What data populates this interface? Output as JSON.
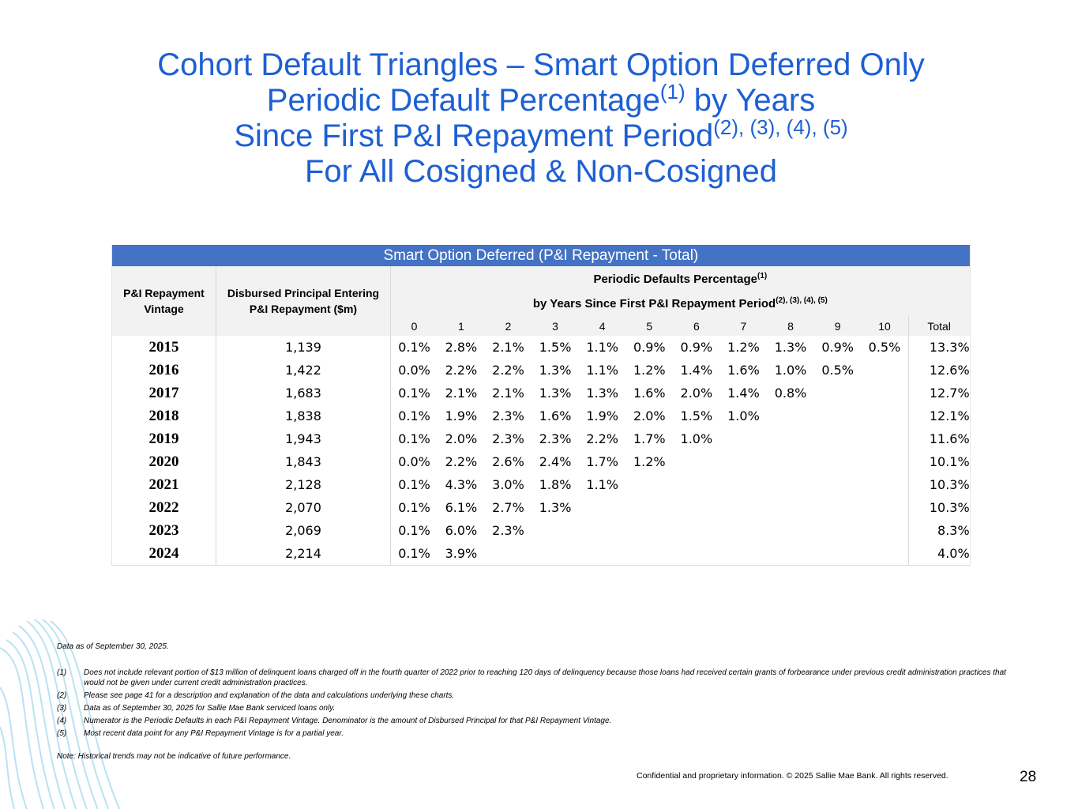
{
  "title": {
    "line1": "Cohort Default Triangles – Smart Option Deferred Only",
    "line2": "Periodic Default Percentage",
    "line2_sup": "(1)",
    "line2_end": "by Years",
    "line3": "Since First P&I Repayment Period",
    "line3_sup": "(2), (3), (4), (5)",
    "line4": "For All Cosigned & Non-Cosigned"
  },
  "table": {
    "caption": "Smart Option Deferred (P&I Repayment - Total)",
    "col_vintage": "P&I Repayment Vintage",
    "col_principal": "Disbursed Principal Entering P&I Repayment ($m)",
    "group_header": "Periodic Defaults Percentage",
    "group_sup": "(1)",
    "group_header2": "by Years Since First P&I Repayment Period",
    "group_sup2": "(2), (3), (4), (5)",
    "periods": [
      "0",
      "1",
      "2",
      "3",
      "4",
      "5",
      "6",
      "7",
      "8",
      "9",
      "10"
    ],
    "total_header": "Total",
    "rows": [
      {
        "vintage": "2015",
        "principal": "1,139",
        "periods": [
          "0.1%",
          "2.8%",
          "2.1%",
          "1.5%",
          "1.1%",
          "0.9%",
          "0.9%",
          "1.2%",
          "1.3%",
          "0.9%",
          "0.5%"
        ],
        "total": "13.3%"
      },
      {
        "vintage": "2016",
        "principal": "1,422",
        "periods": [
          "0.0%",
          "2.2%",
          "2.2%",
          "1.3%",
          "1.1%",
          "1.2%",
          "1.4%",
          "1.6%",
          "1.0%",
          "0.5%"
        ],
        "total": "12.6%"
      },
      {
        "vintage": "2017",
        "principal": "1,683",
        "periods": [
          "0.1%",
          "2.1%",
          "2.1%",
          "1.3%",
          "1.3%",
          "1.6%",
          "2.0%",
          "1.4%",
          "0.8%"
        ],
        "total": "12.7%"
      },
      {
        "vintage": "2018",
        "principal": "1,838",
        "periods": [
          "0.1%",
          "1.9%",
          "2.3%",
          "1.6%",
          "1.9%",
          "2.0%",
          "1.5%",
          "1.0%"
        ],
        "total": "12.1%"
      },
      {
        "vintage": "2019",
        "principal": "1,943",
        "periods": [
          "0.1%",
          "2.0%",
          "2.3%",
          "2.3%",
          "2.2%",
          "1.7%",
          "1.0%"
        ],
        "total": "11.6%"
      },
      {
        "vintage": "2020",
        "principal": "1,843",
        "periods": [
          "0.0%",
          "2.2%",
          "2.6%",
          "2.4%",
          "1.7%",
          "1.2%"
        ],
        "total": "10.1%"
      },
      {
        "vintage": "2021",
        "principal": "2,128",
        "periods": [
          "0.1%",
          "4.3%",
          "3.0%",
          "1.8%",
          "1.1%"
        ],
        "total": "10.3%"
      },
      {
        "vintage": "2022",
        "principal": "2,070",
        "periods": [
          "0.1%",
          "6.1%",
          "2.7%",
          "1.3%"
        ],
        "total": "10.3%"
      },
      {
        "vintage": "2023",
        "principal": "2,069",
        "periods": [
          "0.1%",
          "6.0%",
          "2.3%"
        ],
        "total": "8.3%"
      },
      {
        "vintage": "2024",
        "principal": "2,214",
        "periods": [
          "0.1%",
          "3.9%"
        ],
        "total": "4.0%"
      }
    ]
  },
  "footer": {
    "data_as_of": "Data as of September 30, 2025.",
    "footnotes": [
      {
        "marker": "(1)",
        "text": "Does not include relevant portion of $13 million of delinquent loans charged off in the fourth quarter of 2022 prior to reaching 120 days of delinquency because those loans had received certain grants of forbearance under previous credit administration practices that would not be given under current credit administration practices."
      },
      {
        "marker": "(2)",
        "text": "Please see page 41 for a description and explanation of the data and calculations underlying these charts."
      },
      {
        "marker": "(3)",
        "text": "Data as of September 30, 2025 for Sallie Mae Bank serviced loans only."
      },
      {
        "marker": "(4)",
        "text": "Numerator is the Periodic Defaults in each P&I Repayment Vintage. Denominator is the amount of Disbursed Principal for that P&I Repayment Vintage."
      },
      {
        "marker": "(5)",
        "text": "Most recent data point for any P&I Repayment Vintage is for a partial year."
      }
    ],
    "note": "Note: Historical trends may not be indicative of future performance.",
    "confidential": "Confidential and proprietary information. © 2025 Sallie Mae Bank. All rights reserved.",
    "page_number": "28"
  }
}
